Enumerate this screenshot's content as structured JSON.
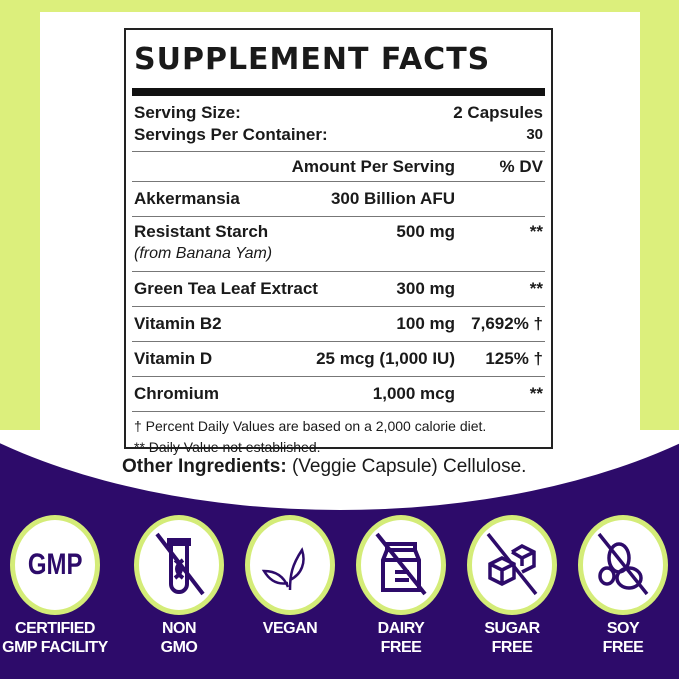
{
  "facts": {
    "title": "SUPPLEMENT FACTS",
    "serving_size_label": "Serving Size:",
    "serving_size_value": "2 Capsules",
    "servings_label": "Servings Per Container:",
    "servings_value": "30",
    "col_amount": "Amount Per Serving",
    "col_dv": "% DV",
    "rows": [
      {
        "name": "Akkermansia",
        "sub": "",
        "amount": "300 Billion AFU",
        "dv": ""
      },
      {
        "name": "Resistant Starch",
        "sub": "(from Banana Yam)",
        "amount": "500 mg",
        "dv": "**"
      },
      {
        "name": "Green Tea Leaf Extract",
        "sub": "",
        "amount": "300 mg",
        "dv": "**"
      },
      {
        "name": "Vitamin B2",
        "sub": "",
        "amount": "100 mg",
        "dv": "7,692% †"
      },
      {
        "name": "Vitamin D",
        "sub": "",
        "amount": "25 mcg (1,000 IU)",
        "dv": "125% †"
      },
      {
        "name": "Chromium",
        "sub": "",
        "amount": "1,000 mcg",
        "dv": "**"
      }
    ],
    "footnote1": "†  Percent Daily Values are based on a 2,000 calorie diet.",
    "footnote2": "** Daily Value not established."
  },
  "other": {
    "label": "Other Ingredients:",
    "value": " (Veggie Capsule) Cellulose."
  },
  "badges": [
    {
      "icon": "gmp-icon",
      "icon_text": "GMP",
      "line1": "CERTIFIED",
      "line2": "GMP FACILITY"
    },
    {
      "icon": "dna-test-tube-crossed-icon",
      "line1": "NON",
      "line2": "GMO"
    },
    {
      "icon": "leaf-icon",
      "line1": "VEGAN",
      "line2": ""
    },
    {
      "icon": "milk-carton-crossed-icon",
      "line1": "DAIRY",
      "line2": "FREE"
    },
    {
      "icon": "sugar-cubes-crossed-icon",
      "line1": "SUGAR",
      "line2": "FREE"
    },
    {
      "icon": "soybean-crossed-icon",
      "line1": "SOY",
      "line2": "FREE"
    }
  ],
  "colors": {
    "purple": "#2d0b6a",
    "lime": "#d4ec78"
  }
}
